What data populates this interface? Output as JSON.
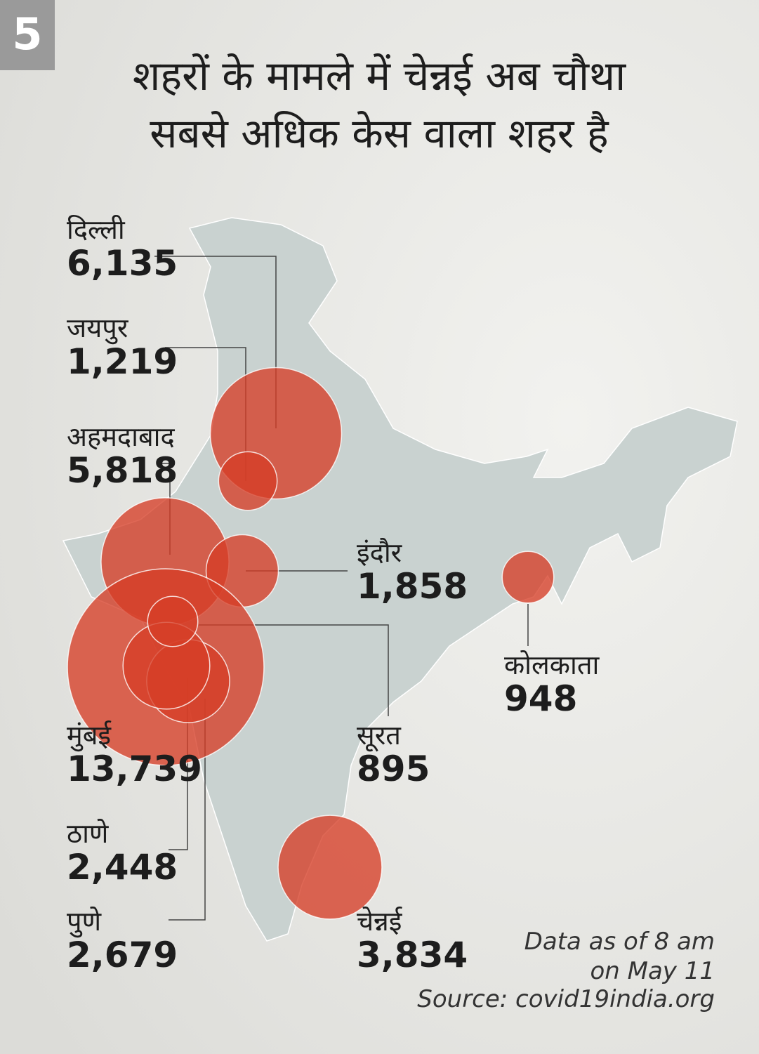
{
  "badge": "5",
  "title": [
    "शहरों के मामले में चेन्नई अब चौथा",
    "सबसे अधिक केस वाला शहर है"
  ],
  "cities": [
    {
      "name": "दिल्ली",
      "value": 6135,
      "label": "6,135"
    },
    {
      "name": "जयपुर",
      "value": 1219,
      "label": "1,219"
    },
    {
      "name": "अहमदाबाद",
      "value": 5818,
      "label": "5,818"
    },
    {
      "name": "इंदौर",
      "value": 1858,
      "label": "1,858"
    },
    {
      "name": "मुंबई",
      "value": 13739,
      "label": "13,739"
    },
    {
      "name": "ठाणे",
      "value": 2448,
      "label": "2,448"
    },
    {
      "name": "पुणे",
      "value": 2679,
      "label": "2,679"
    },
    {
      "name": "सूरत",
      "value": 895,
      "label": "895"
    },
    {
      "name": "चेन्नई",
      "value": 3834,
      "label": "3,834"
    },
    {
      "name": "कोलकाता",
      "value": 948,
      "label": "948"
    }
  ],
  "note": [
    "Data as of 8 am",
    "on May 11",
    "Source: covid19india.org"
  ]
}
